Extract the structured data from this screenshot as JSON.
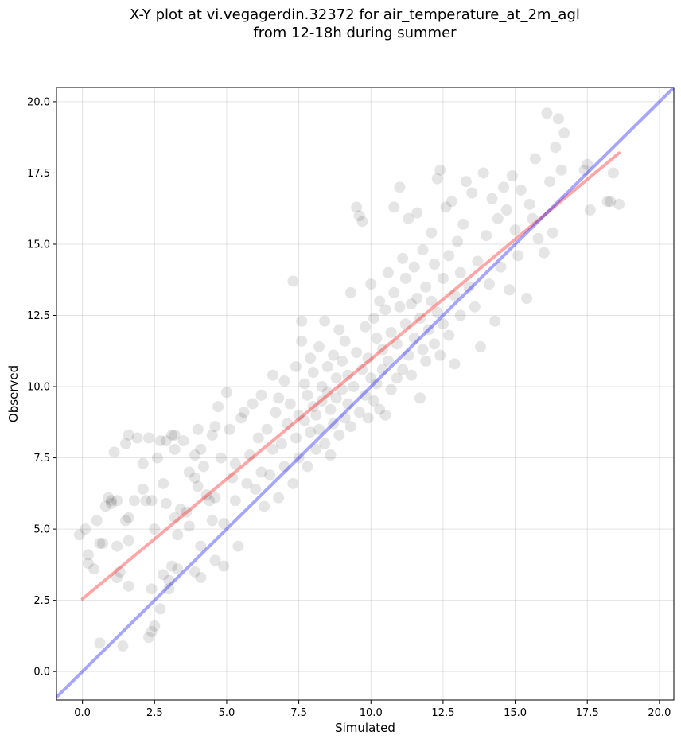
{
  "chart_data": {
    "type": "scatter",
    "title_lines": [
      "X-Y plot at vi.vegagerdin.32372 for air_temperature_at_2m_agl",
      "from 12-18h during summer"
    ],
    "xlabel": "Simulated",
    "ylabel": "Observed",
    "xlim": [
      -0.9,
      20.5
    ],
    "ylim": [
      -1.0,
      20.5
    ],
    "xticks": [
      0.0,
      2.5,
      5.0,
      7.5,
      10.0,
      12.5,
      15.0,
      17.5,
      20.0
    ],
    "yticks": [
      0.0,
      2.5,
      5.0,
      7.5,
      10.0,
      12.5,
      15.0,
      17.5,
      20.0
    ],
    "xtick_labels": [
      "0.0",
      "2.5",
      "5.0",
      "7.5",
      "10.0",
      "12.5",
      "15.0",
      "17.5",
      "20.0"
    ],
    "ytick_labels": [
      "0.0",
      "2.5",
      "5.0",
      "7.5",
      "10.0",
      "12.5",
      "15.0",
      "17.5",
      "20.0"
    ],
    "grid": true,
    "point_color": "#000000",
    "point_alpha": 0.1,
    "lines": [
      {
        "kind": "regression",
        "color": "#ff0000",
        "alpha": 0.35,
        "x": [
          0.0,
          18.6
        ],
        "y": [
          2.55,
          18.2
        ]
      },
      {
        "kind": "identity",
        "color": "#0000ff",
        "alpha": 0.35,
        "x": [
          -0.9,
          20.5
        ],
        "y": [
          -0.9,
          20.5
        ]
      }
    ],
    "points": [
      [
        -0.1,
        4.8
      ],
      [
        0.1,
        5.0
      ],
      [
        0.2,
        4.1
      ],
      [
        0.2,
        3.8
      ],
      [
        0.4,
        3.6
      ],
      [
        0.5,
        5.3
      ],
      [
        0.6,
        4.5
      ],
      [
        0.7,
        4.5
      ],
      [
        0.8,
        5.8
      ],
      [
        0.9,
        6.1
      ],
      [
        1.0,
        5.9
      ],
      [
        1.0,
        6.0
      ],
      [
        1.1,
        7.7
      ],
      [
        1.2,
        6.0
      ],
      [
        1.3,
        3.5
      ],
      [
        1.2,
        3.3
      ],
      [
        1.2,
        4.4
      ],
      [
        1.5,
        5.3
      ],
      [
        1.6,
        5.4
      ],
      [
        1.6,
        4.6
      ],
      [
        1.5,
        8.0
      ],
      [
        1.6,
        8.3
      ],
      [
        1.9,
        8.2
      ],
      [
        1.8,
        6.0
      ],
      [
        2.1,
        6.4
      ],
      [
        2.1,
        7.3
      ],
      [
        2.2,
        6.0
      ],
      [
        2.3,
        8.2
      ],
      [
        2.4,
        6.0
      ],
      [
        2.5,
        5.0
      ],
      [
        2.6,
        7.5
      ],
      [
        2.7,
        8.1
      ],
      [
        2.8,
        6.6
      ],
      [
        2.9,
        5.9
      ],
      [
        2.9,
        8.1
      ],
      [
        3.1,
        8.3
      ],
      [
        3.2,
        8.3
      ],
      [
        3.2,
        7.8
      ],
      [
        3.2,
        5.4
      ],
      [
        3.3,
        4.8
      ],
      [
        3.4,
        5.7
      ],
      [
        3.5,
        8.1
      ],
      [
        3.6,
        5.6
      ],
      [
        3.7,
        5.1
      ],
      [
        3.9,
        6.8
      ],
      [
        3.9,
        7.6
      ],
      [
        4.0,
        8.5
      ],
      [
        4.1,
        7.8
      ],
      [
        4.1,
        4.4
      ],
      [
        4.3,
        6.2
      ],
      [
        4.4,
        6.0
      ],
      [
        4.5,
        8.3
      ],
      [
        4.6,
        8.6
      ],
      [
        4.6,
        6.1
      ],
      [
        4.7,
        9.3
      ],
      [
        4.8,
        7.5
      ],
      [
        4.9,
        5.2
      ],
      [
        4.9,
        3.7
      ],
      [
        5.0,
        9.8
      ],
      [
        5.1,
        8.5
      ],
      [
        0.6,
        1.0
      ],
      [
        1.4,
        0.9
      ],
      [
        2.3,
        1.2
      ],
      [
        2.4,
        1.4
      ],
      [
        2.5,
        1.6
      ],
      [
        2.7,
        2.2
      ],
      [
        2.4,
        2.9
      ],
      [
        1.6,
        3.0
      ],
      [
        2.8,
        3.4
      ],
      [
        3.0,
        3.2
      ],
      [
        3.3,
        3.6
      ],
      [
        3.0,
        2.9
      ],
      [
        3.1,
        3.7
      ],
      [
        4.1,
        3.3
      ],
      [
        3.9,
        3.5
      ],
      [
        4.6,
        3.9
      ],
      [
        4.5,
        5.3
      ],
      [
        4.0,
        6.5
      ],
      [
        3.7,
        7.0
      ],
      [
        4.2,
        7.2
      ],
      [
        5.2,
        6.8
      ],
      [
        5.3,
        7.3
      ],
      [
        5.3,
        6.0
      ],
      [
        5.4,
        4.4
      ],
      [
        5.5,
        8.9
      ],
      [
        5.6,
        9.1
      ],
      [
        5.7,
        6.6
      ],
      [
        5.8,
        7.6
      ],
      [
        5.9,
        9.4
      ],
      [
        6.0,
        6.4
      ],
      [
        6.1,
        8.2
      ],
      [
        6.2,
        7.0
      ],
      [
        6.2,
        9.7
      ],
      [
        6.3,
        5.8
      ],
      [
        6.4,
        8.5
      ],
      [
        6.5,
        6.9
      ],
      [
        6.6,
        10.4
      ],
      [
        6.6,
        7.8
      ],
      [
        6.7,
        9.1
      ],
      [
        6.8,
        6.1
      ],
      [
        6.8,
        9.6
      ],
      [
        6.9,
        8.0
      ],
      [
        7.0,
        7.2
      ],
      [
        7.0,
        10.2
      ],
      [
        7.1,
        8.7
      ],
      [
        7.2,
        9.4
      ],
      [
        7.3,
        6.6
      ],
      [
        7.3,
        13.7
      ],
      [
        7.4,
        8.2
      ],
      [
        7.4,
        10.7
      ],
      [
        7.5,
        9.0
      ],
      [
        7.5,
        7.5
      ],
      [
        7.6,
        11.6
      ],
      [
        7.6,
        12.3
      ],
      [
        7.7,
        8.8
      ],
      [
        7.7,
        10.1
      ],
      [
        7.8,
        7.2
      ],
      [
        7.8,
        9.7
      ],
      [
        7.9,
        11.0
      ],
      [
        7.9,
        8.4
      ],
      [
        8.0,
        9.3
      ],
      [
        8.0,
        10.5
      ],
      [
        8.1,
        7.8
      ],
      [
        8.1,
        9.0
      ],
      [
        8.2,
        11.4
      ],
      [
        8.2,
        8.5
      ],
      [
        8.3,
        10.0
      ],
      [
        8.3,
        9.5
      ],
      [
        8.4,
        12.3
      ],
      [
        8.4,
        8.0
      ],
      [
        8.5,
        9.8
      ],
      [
        8.5,
        10.7
      ],
      [
        8.6,
        7.6
      ],
      [
        8.6,
        9.2
      ],
      [
        8.7,
        11.1
      ],
      [
        8.7,
        8.7
      ],
      [
        8.8,
        10.3
      ],
      [
        8.8,
        9.6
      ],
      [
        8.9,
        12.0
      ],
      [
        8.9,
        8.3
      ],
      [
        9.0,
        9.9
      ],
      [
        9.0,
        10.9
      ],
      [
        9.1,
        8.9
      ],
      [
        9.1,
        11.6
      ],
      [
        9.2,
        9.4
      ],
      [
        9.2,
        10.4
      ],
      [
        9.3,
        13.3
      ],
      [
        9.3,
        8.6
      ],
      [
        9.4,
        10.0
      ],
      [
        9.5,
        11.2
      ],
      [
        9.5,
        16.3
      ],
      [
        9.6,
        16.0
      ],
      [
        9.6,
        9.1
      ],
      [
        9.7,
        15.8
      ],
      [
        9.7,
        10.6
      ],
      [
        9.8,
        12.1
      ],
      [
        9.8,
        9.7
      ],
      [
        9.9,
        11.0
      ],
      [
        9.9,
        8.9
      ],
      [
        10.0,
        10.3
      ],
      [
        10.0,
        13.6
      ],
      [
        10.1,
        12.4
      ],
      [
        10.1,
        9.5
      ],
      [
        10.2,
        11.7
      ],
      [
        10.2,
        10.1
      ],
      [
        10.3,
        13.0
      ],
      [
        10.3,
        9.2
      ],
      [
        10.4,
        11.3
      ],
      [
        10.4,
        10.6
      ],
      [
        10.5,
        12.7
      ],
      [
        10.5,
        9.0
      ],
      [
        10.6,
        14.0
      ],
      [
        10.6,
        10.9
      ],
      [
        10.7,
        11.9
      ],
      [
        10.7,
        9.9
      ],
      [
        10.8,
        13.3
      ],
      [
        10.8,
        16.3
      ],
      [
        10.9,
        11.5
      ],
      [
        10.9,
        10.3
      ],
      [
        11.0,
        12.8
      ],
      [
        11.0,
        17.0
      ],
      [
        11.1,
        14.5
      ],
      [
        11.1,
        10.6
      ],
      [
        11.2,
        12.2
      ],
      [
        11.2,
        13.8
      ],
      [
        11.3,
        11.1
      ],
      [
        11.3,
        15.9
      ],
      [
        11.4,
        12.9
      ],
      [
        11.4,
        10.4
      ],
      [
        11.5,
        14.2
      ],
      [
        11.5,
        11.7
      ],
      [
        11.6,
        13.1
      ],
      [
        11.6,
        16.1
      ],
      [
        11.7,
        12.4
      ],
      [
        11.7,
        9.6
      ],
      [
        11.8,
        14.8
      ],
      [
        11.8,
        11.3
      ],
      [
        11.9,
        13.5
      ],
      [
        11.9,
        10.9
      ],
      [
        12.0,
        12.0
      ],
      [
        12.1,
        15.4
      ],
      [
        12.1,
        13.0
      ],
      [
        12.2,
        11.5
      ],
      [
        12.2,
        14.3
      ],
      [
        12.3,
        17.3
      ],
      [
        12.3,
        12.6
      ],
      [
        12.4,
        17.6
      ],
      [
        12.4,
        11.1
      ],
      [
        12.5,
        13.8
      ],
      [
        12.5,
        12.2
      ],
      [
        12.6,
        16.3
      ],
      [
        12.7,
        14.6
      ],
      [
        12.7,
        11.8
      ],
      [
        12.8,
        16.5
      ],
      [
        12.9,
        13.2
      ],
      [
        12.9,
        10.8
      ],
      [
        13.0,
        15.1
      ],
      [
        13.1,
        12.5
      ],
      [
        13.1,
        14.0
      ],
      [
        13.2,
        15.7
      ],
      [
        13.3,
        17.2
      ],
      [
        13.4,
        13.5
      ],
      [
        13.5,
        16.8
      ],
      [
        13.6,
        12.8
      ],
      [
        13.7,
        14.4
      ],
      [
        13.8,
        11.4
      ],
      [
        13.9,
        17.5
      ],
      [
        14.0,
        15.3
      ],
      [
        14.1,
        13.6
      ],
      [
        14.2,
        16.6
      ],
      [
        14.3,
        12.3
      ],
      [
        14.4,
        15.9
      ],
      [
        14.5,
        14.2
      ],
      [
        14.6,
        17.0
      ],
      [
        14.7,
        16.2
      ],
      [
        14.8,
        13.4
      ],
      [
        14.9,
        17.4
      ],
      [
        15.0,
        15.5
      ],
      [
        15.1,
        14.6
      ],
      [
        15.2,
        16.9
      ],
      [
        15.4,
        13.1
      ],
      [
        15.5,
        16.4
      ],
      [
        15.6,
        15.9
      ],
      [
        15.7,
        18.0
      ],
      [
        15.8,
        15.2
      ],
      [
        16.0,
        14.7
      ],
      [
        16.1,
        19.6
      ],
      [
        16.2,
        17.2
      ],
      [
        16.3,
        15.4
      ],
      [
        16.4,
        18.4
      ],
      [
        16.5,
        19.4
      ],
      [
        16.6,
        17.6
      ],
      [
        16.7,
        18.9
      ],
      [
        17.4,
        17.6
      ],
      [
        17.5,
        17.8
      ],
      [
        17.6,
        16.2
      ],
      [
        18.2,
        16.5
      ],
      [
        18.3,
        16.5
      ],
      [
        18.4,
        17.5
      ],
      [
        18.6,
        16.4
      ]
    ]
  }
}
